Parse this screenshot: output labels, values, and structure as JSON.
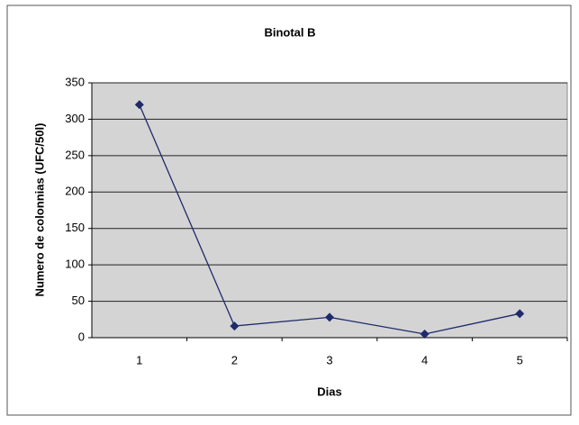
{
  "chart_data": {
    "type": "line",
    "title": "Binotal B",
    "x_label": "Dias",
    "y_label": "Numero de colonnias (UFC/50l)",
    "categories": [
      "1",
      "2",
      "3",
      "4",
      "5"
    ],
    "series": [
      {
        "name": "Binotal B",
        "color": "#1f2a6b",
        "values": [
          320,
          16,
          28,
          5,
          33
        ]
      }
    ],
    "ylim": [
      0,
      350
    ],
    "yticks": [
      0,
      50,
      100,
      150,
      200,
      250,
      300,
      350
    ],
    "grid": true
  }
}
